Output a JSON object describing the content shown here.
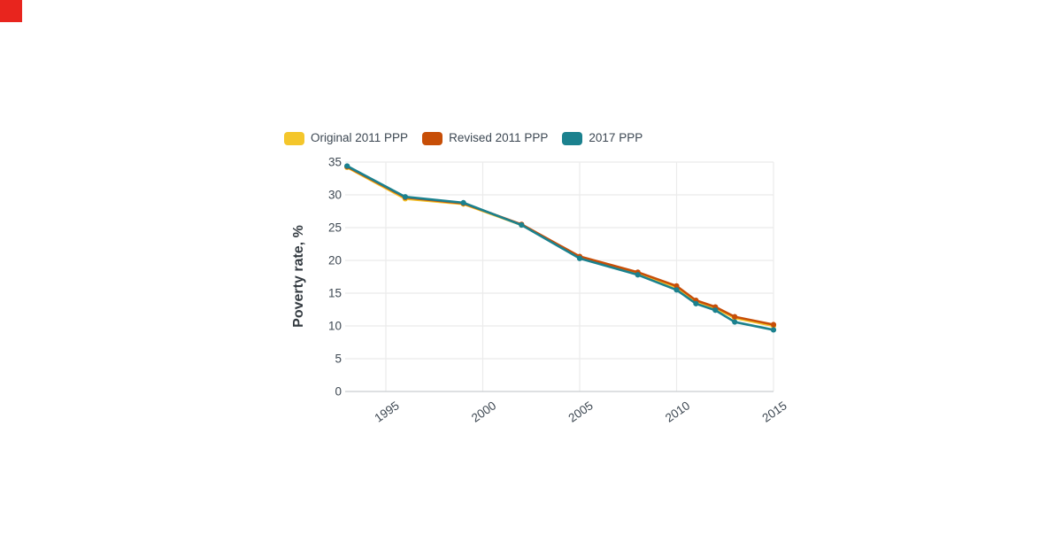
{
  "corner_badge": {
    "color": "#e8251e"
  },
  "chart_data": {
    "type": "line",
    "title": "",
    "xlabel": "",
    "ylabel": "Poverty rate, %",
    "x": [
      1993,
      1996,
      1999,
      2002,
      2005,
      2008,
      2010,
      2011,
      2012,
      2013,
      2015
    ],
    "x_ticks": [
      1995,
      2000,
      2005,
      2010,
      2015
    ],
    "y_ticks": [
      0,
      5,
      10,
      15,
      20,
      25,
      30,
      35
    ],
    "xlim": [
      1992.9,
      2015
    ],
    "ylim": [
      0,
      35
    ],
    "grid": true,
    "legend_position": "top-left",
    "marker": "circle",
    "text_color": "#3f4953",
    "grid_color": "#ebebeb",
    "zero_line_color": "#c9cdd0",
    "series": [
      {
        "name": "Original 2011 PPP",
        "color": "#f4c62b",
        "values": [
          34.2,
          29.4,
          28.6,
          25.4,
          20.5,
          18.0,
          15.9,
          13.7,
          12.7,
          11.2,
          10.0
        ]
      },
      {
        "name": "Revised 2011 PPP",
        "color": "#c74e07",
        "values": [
          34.3,
          29.6,
          28.7,
          25.5,
          20.6,
          18.2,
          16.1,
          13.9,
          12.9,
          11.4,
          10.2
        ]
      },
      {
        "name": "2017 PPP",
        "color": "#1b818e",
        "values": [
          34.4,
          29.7,
          28.8,
          25.4,
          20.3,
          17.8,
          15.5,
          13.4,
          12.4,
          10.6,
          9.4
        ]
      }
    ]
  }
}
